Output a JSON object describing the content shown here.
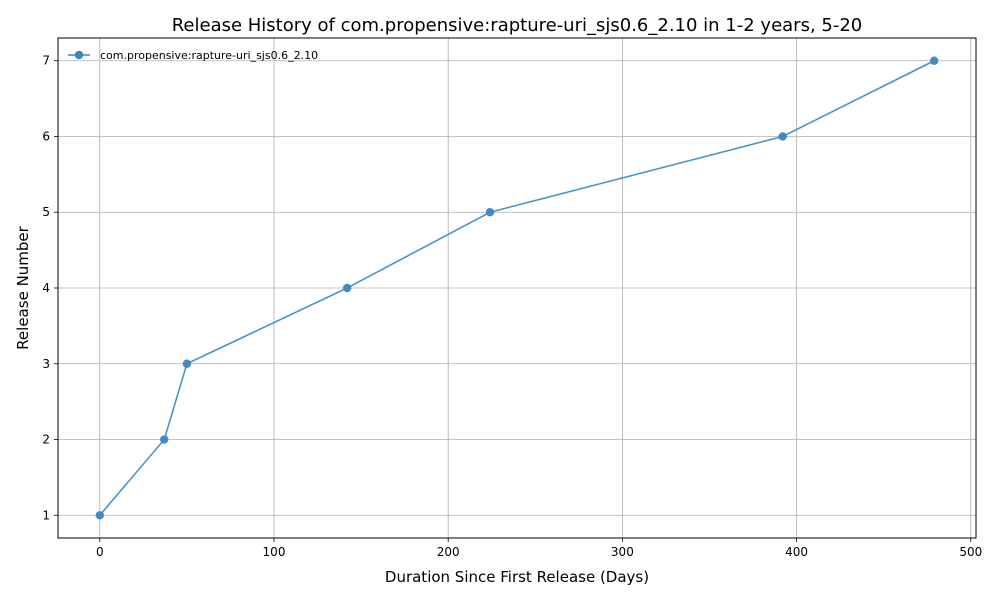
{
  "chart_data": {
    "type": "line",
    "title": "Release History of com.propensive:rapture-uri_sjs0.6_2.10 in 1-2 years, 5-20",
    "xlabel": "Duration Since First Release (Days)",
    "ylabel": "Release Number",
    "xlim": [
      -24,
      503
    ],
    "ylim": [
      0.7,
      7.3
    ],
    "xticks": [
      0,
      100,
      200,
      300,
      400,
      500
    ],
    "yticks": [
      1,
      2,
      3,
      4,
      5,
      6,
      7
    ],
    "grid": true,
    "legend_position": "top-left",
    "series": [
      {
        "name": "com.propensive:rapture-uri_sjs0.6_2.10",
        "color": "#3a87bf",
        "marker": "circle",
        "x": [
          0,
          37,
          50,
          142,
          224,
          392,
          479
        ],
        "y": [
          1,
          2,
          3,
          4,
          5,
          6,
          7
        ]
      }
    ]
  }
}
